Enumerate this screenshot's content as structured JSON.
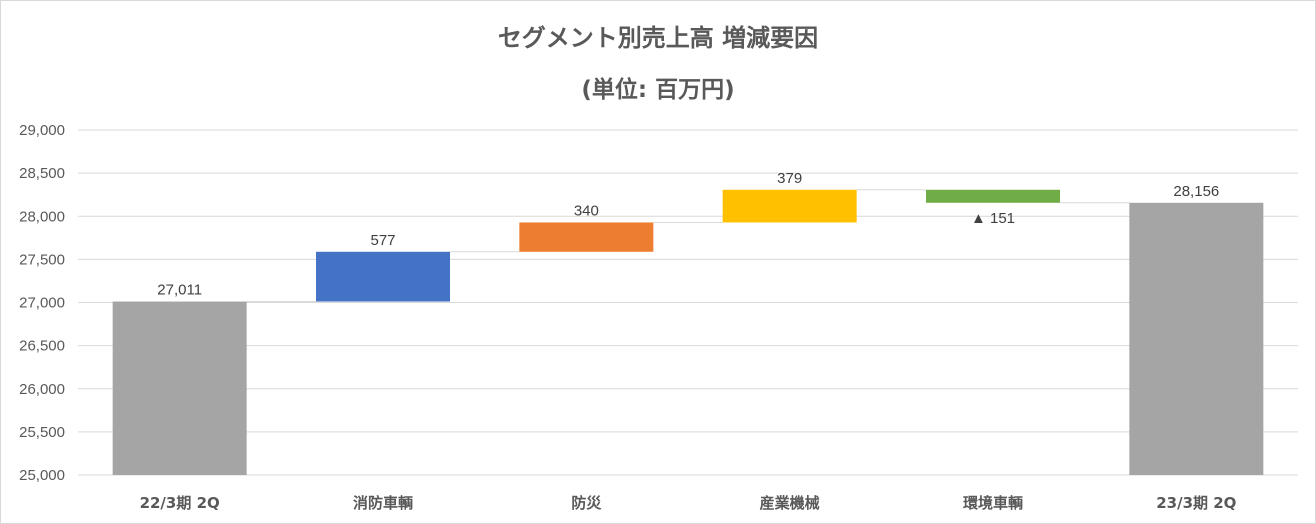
{
  "chart_data": {
    "type": "bar",
    "subtype": "waterfall",
    "title": "セグメント別売上高 増減要因",
    "subtitle": "(単位: 百万円)",
    "xlabel": "",
    "ylabel": "",
    "ylim": [
      25000,
      29000
    ],
    "yticks": [
      "25,000",
      "25,500",
      "26,000",
      "26,500",
      "27,000",
      "27,500",
      "28,000",
      "28,500",
      "29,000"
    ],
    "grid": true,
    "legend": "none",
    "categories": [
      "22/3期 2Q",
      "消防車輌",
      "防災",
      "産業機械",
      "環境車輌",
      "23/3期 2Q"
    ],
    "values": [
      27011,
      577,
      340,
      379,
      -151,
      28156
    ],
    "bar_kinds": [
      "total",
      "delta",
      "delta",
      "delta",
      "delta",
      "total"
    ],
    "data_labels": [
      "27,011",
      "577",
      "340",
      "379",
      "▲ 151",
      "28,156"
    ],
    "colors": [
      "#a5a5a5",
      "#4472c4",
      "#ed7d31",
      "#ffc000",
      "#70ad47",
      "#a5a5a5"
    ],
    "connector_color": "#d9d9d9",
    "gridline_color": "#d9d9d9"
  }
}
